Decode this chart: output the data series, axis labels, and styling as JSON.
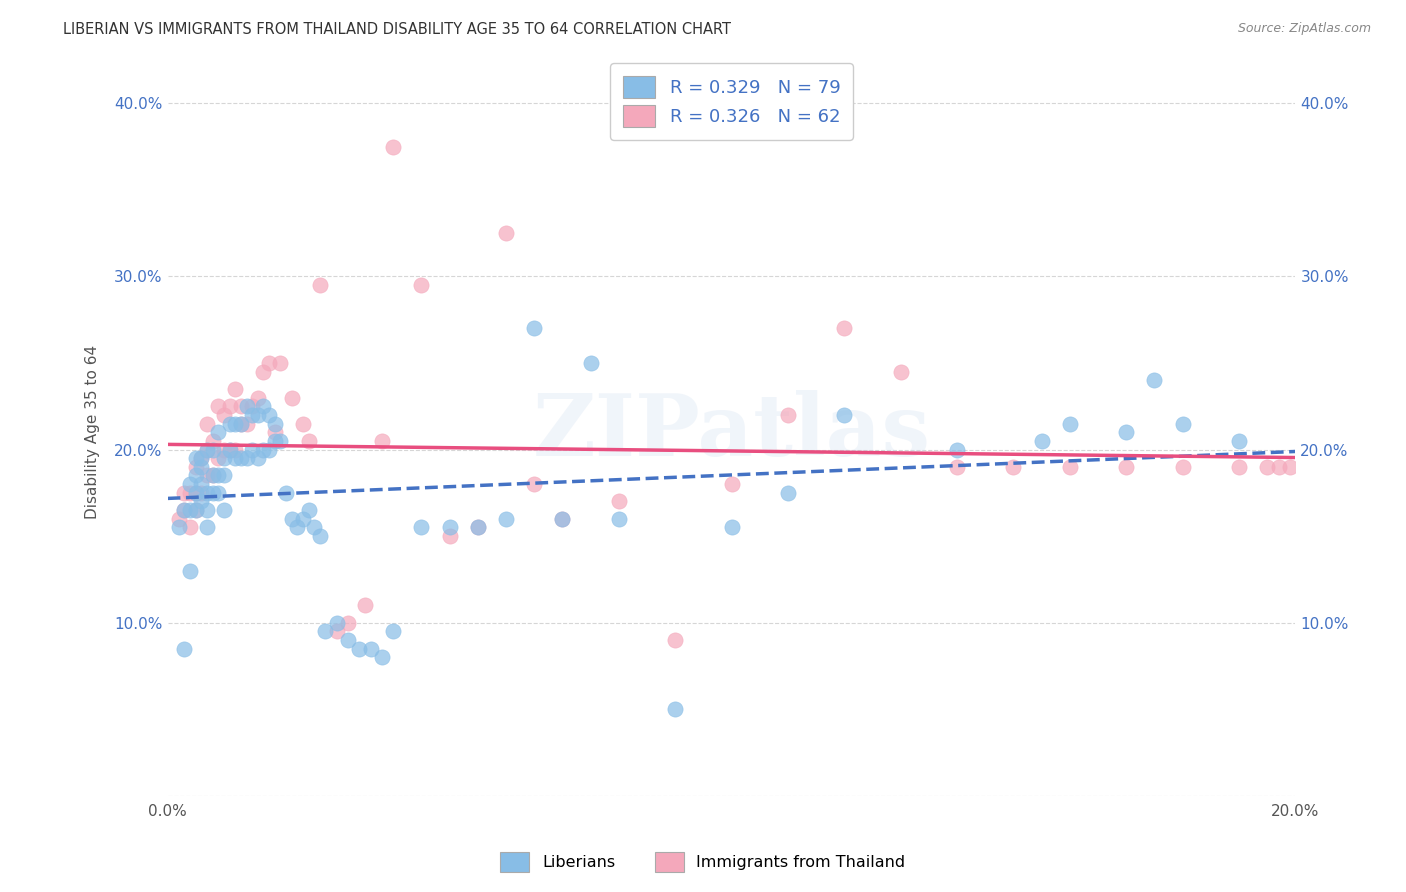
{
  "title": "LIBERIAN VS IMMIGRANTS FROM THAILAND DISABILITY AGE 35 TO 64 CORRELATION CHART",
  "source": "Source: ZipAtlas.com",
  "ylabel": "Disability Age 35 to 64",
  "xlim": [
    0.0,
    0.2
  ],
  "ylim": [
    0.0,
    0.42
  ],
  "x_ticks": [
    0.0,
    0.04,
    0.08,
    0.12,
    0.16,
    0.2
  ],
  "x_tick_labels": [
    "0.0%",
    "",
    "",
    "",
    "",
    "20.0%"
  ],
  "y_ticks": [
    0.0,
    0.1,
    0.2,
    0.3,
    0.4
  ],
  "y_tick_labels": [
    "",
    "10.0%",
    "20.0%",
    "30.0%",
    "40.0%"
  ],
  "liberian_color": "#88bde6",
  "thailand_color": "#f4a8bb",
  "liberian_line_color": "#4472c4",
  "thailand_line_color": "#e84e7f",
  "liberian_R": 0.329,
  "liberian_N": 79,
  "thailand_R": 0.326,
  "thailand_N": 62,
  "legend_label_1": "Liberians",
  "legend_label_2": "Immigrants from Thailand",
  "watermark": "ZIPatlas",
  "background_color": "#ffffff",
  "liberian_points_x": [
    0.002,
    0.003,
    0.003,
    0.004,
    0.004,
    0.004,
    0.005,
    0.005,
    0.005,
    0.005,
    0.006,
    0.006,
    0.006,
    0.006,
    0.007,
    0.007,
    0.007,
    0.007,
    0.008,
    0.008,
    0.008,
    0.009,
    0.009,
    0.009,
    0.01,
    0.01,
    0.01,
    0.011,
    0.011,
    0.012,
    0.012,
    0.013,
    0.013,
    0.014,
    0.014,
    0.015,
    0.015,
    0.016,
    0.016,
    0.017,
    0.017,
    0.018,
    0.018,
    0.019,
    0.019,
    0.02,
    0.021,
    0.022,
    0.023,
    0.024,
    0.025,
    0.026,
    0.027,
    0.028,
    0.03,
    0.032,
    0.034,
    0.036,
    0.038,
    0.04,
    0.045,
    0.05,
    0.055,
    0.06,
    0.065,
    0.07,
    0.075,
    0.08,
    0.09,
    0.1,
    0.11,
    0.12,
    0.14,
    0.155,
    0.16,
    0.17,
    0.175,
    0.18,
    0.19
  ],
  "liberian_points_y": [
    0.155,
    0.085,
    0.165,
    0.13,
    0.165,
    0.18,
    0.165,
    0.175,
    0.185,
    0.195,
    0.17,
    0.18,
    0.19,
    0.195,
    0.155,
    0.165,
    0.175,
    0.2,
    0.175,
    0.185,
    0.2,
    0.175,
    0.185,
    0.21,
    0.165,
    0.185,
    0.195,
    0.2,
    0.215,
    0.195,
    0.215,
    0.195,
    0.215,
    0.195,
    0.225,
    0.2,
    0.22,
    0.195,
    0.22,
    0.2,
    0.225,
    0.2,
    0.22,
    0.205,
    0.215,
    0.205,
    0.175,
    0.16,
    0.155,
    0.16,
    0.165,
    0.155,
    0.15,
    0.095,
    0.1,
    0.09,
    0.085,
    0.085,
    0.08,
    0.095,
    0.155,
    0.155,
    0.155,
    0.16,
    0.27,
    0.16,
    0.25,
    0.16,
    0.05,
    0.155,
    0.175,
    0.22,
    0.2,
    0.205,
    0.215,
    0.21,
    0.24,
    0.215,
    0.205
  ],
  "thailand_points_x": [
    0.002,
    0.003,
    0.003,
    0.004,
    0.004,
    0.005,
    0.005,
    0.005,
    0.006,
    0.006,
    0.007,
    0.007,
    0.007,
    0.008,
    0.008,
    0.009,
    0.009,
    0.01,
    0.01,
    0.011,
    0.011,
    0.012,
    0.012,
    0.013,
    0.013,
    0.014,
    0.015,
    0.016,
    0.017,
    0.018,
    0.019,
    0.02,
    0.022,
    0.024,
    0.025,
    0.027,
    0.03,
    0.032,
    0.035,
    0.038,
    0.04,
    0.045,
    0.05,
    0.055,
    0.06,
    0.065,
    0.07,
    0.08,
    0.09,
    0.1,
    0.11,
    0.12,
    0.13,
    0.14,
    0.15,
    0.16,
    0.17,
    0.18,
    0.19,
    0.195,
    0.197,
    0.199
  ],
  "thailand_points_y": [
    0.16,
    0.165,
    0.175,
    0.155,
    0.175,
    0.165,
    0.175,
    0.19,
    0.175,
    0.195,
    0.185,
    0.2,
    0.215,
    0.185,
    0.205,
    0.195,
    0.225,
    0.2,
    0.22,
    0.2,
    0.225,
    0.2,
    0.235,
    0.215,
    0.225,
    0.215,
    0.225,
    0.23,
    0.245,
    0.25,
    0.21,
    0.25,
    0.23,
    0.215,
    0.205,
    0.295,
    0.095,
    0.1,
    0.11,
    0.205,
    0.375,
    0.295,
    0.15,
    0.155,
    0.325,
    0.18,
    0.16,
    0.17,
    0.09,
    0.18,
    0.22,
    0.27,
    0.245,
    0.19,
    0.19,
    0.19,
    0.19,
    0.19,
    0.19,
    0.19,
    0.19,
    0.19
  ]
}
